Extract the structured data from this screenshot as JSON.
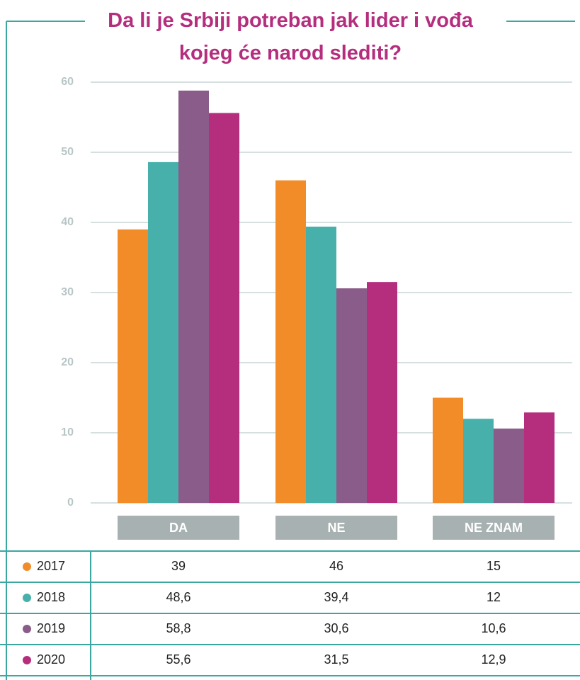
{
  "chart_data": {
    "type": "bar",
    "title": "Da li je Srbiji potreban jak lider i vođa kojeg će narod slediti?",
    "categories": [
      "DA",
      "NE",
      "NE ZNAM"
    ],
    "series": [
      {
        "name": "2017",
        "color": "#f28c28",
        "values": [
          39,
          46,
          15
        ]
      },
      {
        "name": "2018",
        "color": "#47b0ab",
        "values": [
          48.6,
          39.4,
          12
        ],
        "value_labels": [
          "48,6",
          "39,4",
          "12"
        ]
      },
      {
        "name": "2019",
        "color": "#8a5c8a",
        "values": [
          58.8,
          30.6,
          10.6
        ],
        "value_labels": [
          "58,8",
          "30,6",
          "10,6"
        ]
      },
      {
        "name": "2020",
        "color": "#b52e7e",
        "values": [
          55.6,
          31.5,
          12.9
        ],
        "value_labels": [
          "55,6",
          "31,5",
          "12,9"
        ]
      }
    ],
    "ylim": [
      0,
      60
    ],
    "yticks": [
      0,
      10,
      20,
      30,
      40,
      50,
      60
    ],
    "grid": true
  }
}
